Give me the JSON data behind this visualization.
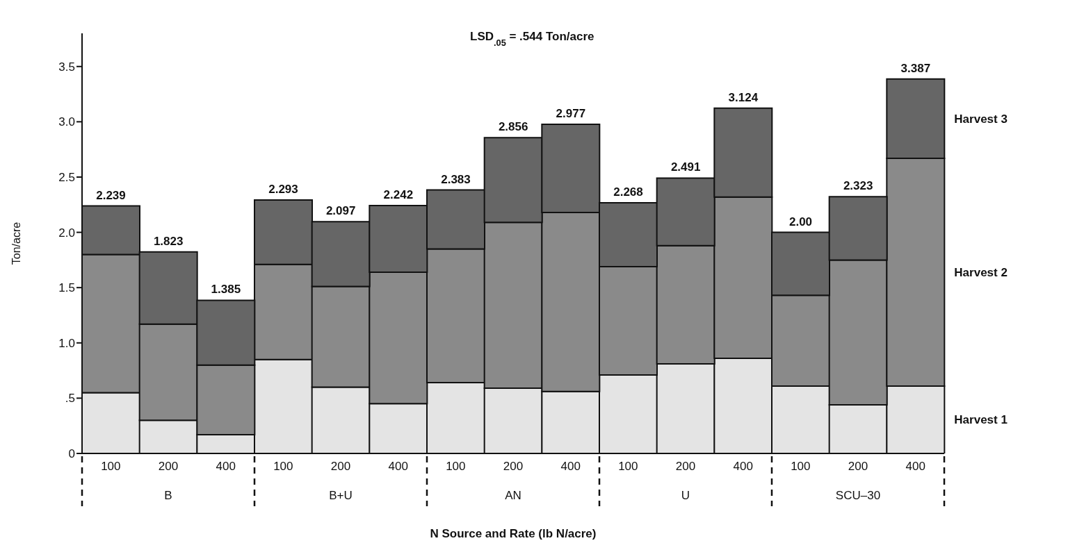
{
  "chart_data": {
    "type": "bar",
    "stacked": true,
    "xlabel": "N Source and Rate (lb N/acre)",
    "ylabel": "Ton/acre",
    "categories": [
      "100",
      "200",
      "400",
      "100",
      "200",
      "400",
      "100",
      "200",
      "400",
      "100",
      "200",
      "400",
      "100",
      "200",
      "400"
    ],
    "series": [
      {
        "name": "Harvest 1",
        "color": "#e4e4e4",
        "values": [
          0.55,
          0.3,
          0.17,
          0.85,
          0.6,
          0.45,
          0.64,
          0.59,
          0.56,
          0.71,
          0.81,
          0.86,
          0.61,
          0.44,
          0.61
        ]
      },
      {
        "name": "Harvest 2",
        "color": "#8a8a8a",
        "values": [
          1.25,
          0.87,
          0.63,
          0.86,
          0.91,
          1.19,
          1.21,
          1.5,
          1.62,
          0.98,
          1.07,
          1.46,
          0.82,
          1.31,
          2.06
        ]
      },
      {
        "name": "Harvest 3",
        "color": "#666666",
        "values": [
          0.439,
          0.653,
          0.585,
          0.583,
          0.587,
          0.602,
          0.533,
          0.766,
          0.797,
          0.578,
          0.611,
          0.804,
          0.57,
          0.573,
          0.717
        ]
      }
    ],
    "totals": [
      "2.239",
      "1.823",
      "1.385",
      "2.293",
      "2.097",
      "2.242",
      "2.383",
      "2.856",
      "2.977",
      "2.268",
      "2.491",
      "3.124",
      "2.00",
      "2.323",
      "3.387"
    ],
    "annotations": [
      "LSD$_{.05}$ = .544 Ton/acre",
      "B",
      "B+U",
      "AN",
      "U",
      "SCU–30"
    ],
    "ylim": [
      0,
      3.8
    ],
    "yticks": [
      0,
      {
        "value": 0.5,
        "label": ".5"
      },
      {
        "value": 1,
        "label": "1.0"
      },
      {
        "value": 1.5,
        "label": "1.5"
      },
      {
        "value": 2,
        "label": "2.0"
      },
      {
        "value": 2.5,
        "label": "2.5"
      },
      {
        "value": 3,
        "label": "3.0"
      },
      3.5
    ],
    "grid": false,
    "legend": false
  }
}
